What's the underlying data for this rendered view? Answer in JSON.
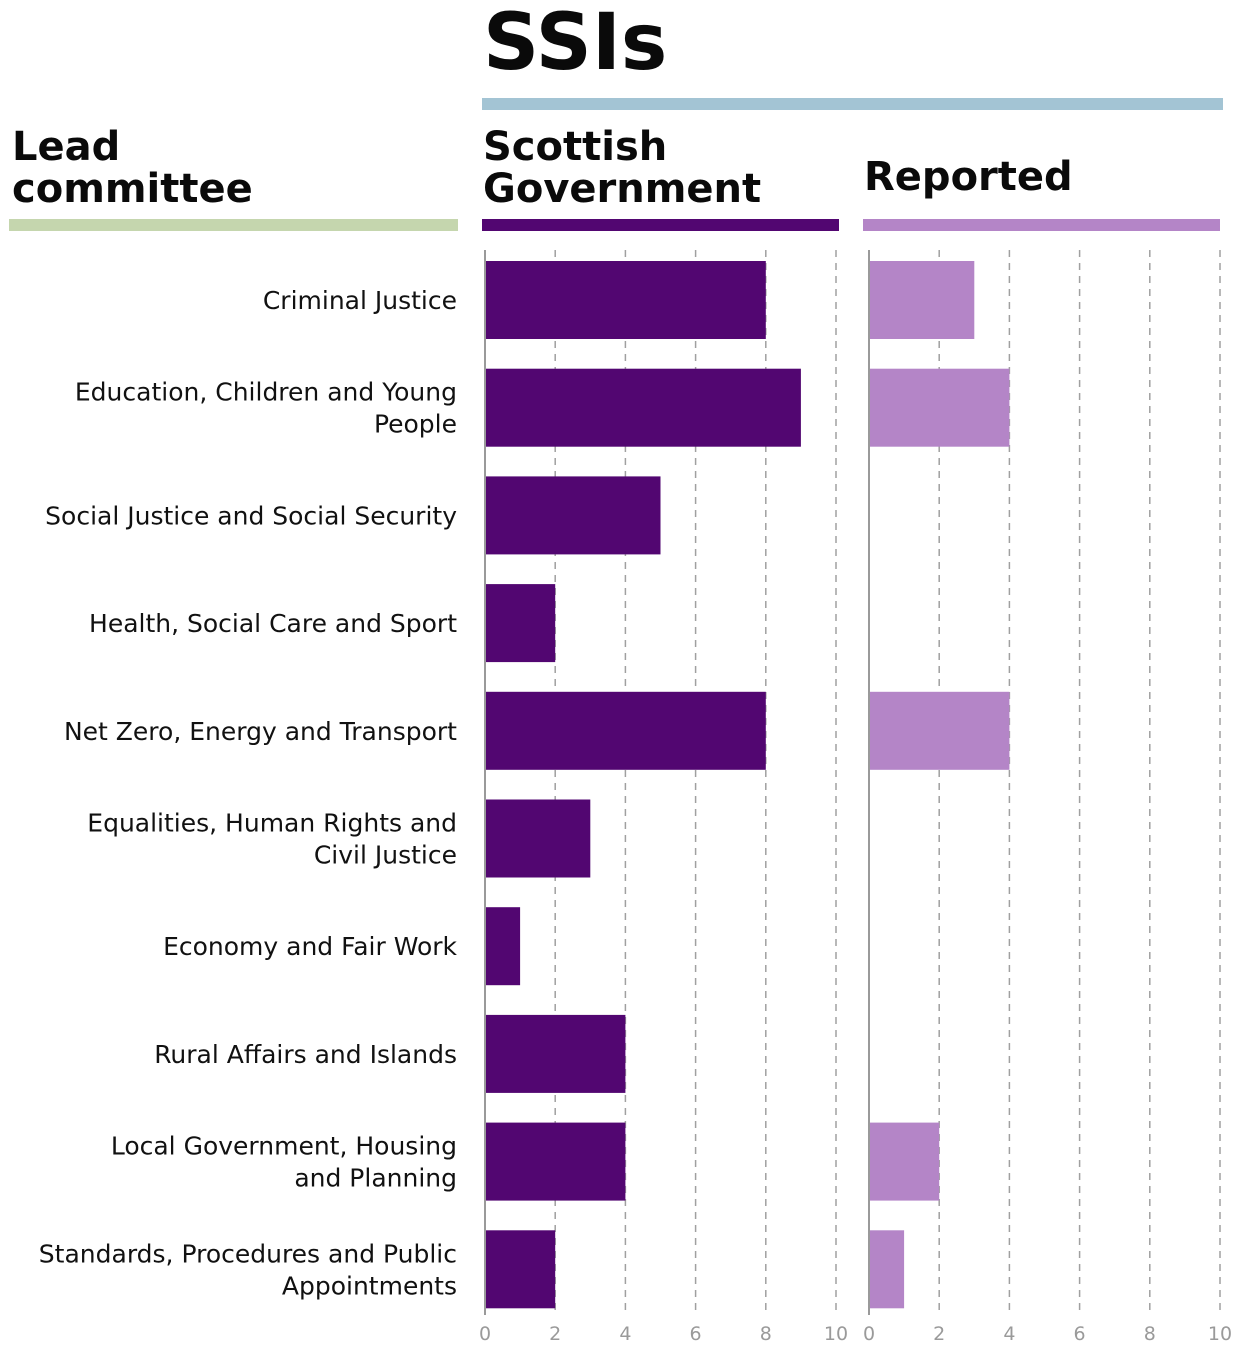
{
  "headers": {
    "main": "SSIs",
    "lead_committee": [
      "Lead",
      "committee"
    ],
    "scottish_government": [
      "Scottish",
      "Government"
    ],
    "reported": "Reported"
  },
  "colors": {
    "main_rule": "#a3c4d4",
    "lead_rule": "#c5d6ae",
    "government": "#520671",
    "reported": "#b485c7",
    "grid": "#a0a0a0",
    "axis": "#9a9a9a"
  },
  "chart_data": [
    {
      "type": "bar",
      "orientation": "horizontal",
      "title": "Scottish Government",
      "categories": [
        "Criminal Justice",
        "Education, Children and Young People",
        "Social Justice and Social Security",
        "Health, Social Care and Sport",
        "Net Zero, Energy and Transport",
        "Equalities, Human Rights and Civil Justice",
        "Economy and Fair Work",
        "Rural Affairs and Islands",
        "Local Government, Housing and Planning",
        "Standards, Procedures and Public Appointments"
      ],
      "values": [
        8,
        9,
        5,
        2,
        8,
        3,
        1,
        4,
        4,
        2
      ],
      "xlim": [
        0,
        10
      ],
      "ticks": [
        0,
        2,
        4,
        6,
        8,
        10
      ],
      "grid": true
    },
    {
      "type": "bar",
      "orientation": "horizontal",
      "title": "Reported",
      "categories": [
        "Criminal Justice",
        "Education, Children and Young People",
        "Social Justice and Social Security",
        "Health, Social Care and Sport",
        "Net Zero, Energy and Transport",
        "Equalities, Human Rights and Civil Justice",
        "Economy and Fair Work",
        "Rural Affairs and Islands",
        "Local Government, Housing and Planning",
        "Standards, Procedures and Public Appointments"
      ],
      "values": [
        3,
        4,
        0,
        0,
        4,
        0,
        0,
        0,
        2,
        1
      ],
      "xlim": [
        0,
        10
      ],
      "ticks": [
        0,
        2,
        4,
        6,
        8,
        10
      ],
      "grid": true
    }
  ],
  "category_label_lines": [
    [
      "Criminal Justice"
    ],
    [
      "Education, Children and Young",
      "People"
    ],
    [
      "Social Justice and Social Security"
    ],
    [
      "Health, Social Care and Sport"
    ],
    [
      "Net Zero, Energy and Transport"
    ],
    [
      "Equalities, Human Rights and",
      "Civil Justice"
    ],
    [
      "Economy and Fair Work"
    ],
    [
      "Rural Affairs and Islands"
    ],
    [
      "Local Government, Housing",
      "and Planning"
    ],
    [
      "Standards, Procedures and Public",
      "Appointments"
    ]
  ]
}
